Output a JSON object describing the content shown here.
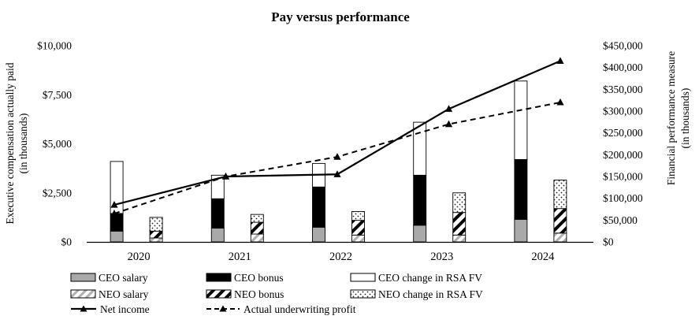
{
  "title": "Pay versus performance",
  "colors": {
    "ink": "#000000",
    "ceo_salary_gray": "#a9a9a9",
    "stripe_light_gray": "#b0b0b0",
    "white": "#ffffff"
  },
  "chart_data": {
    "type": "bar",
    "subtype": "stacked-bars-with-lines",
    "title": "Pay versus performance",
    "grid": false,
    "legend_position": "bottom",
    "categories": [
      "2020",
      "2021",
      "2022",
      "2023",
      "2024"
    ],
    "bar_groups": [
      {
        "name": "CEO",
        "axis": "left",
        "stack": [
          {
            "name": "CEO salary",
            "style": "solid-gray",
            "values": [
              550,
              700,
              750,
              850,
              1150
            ]
          },
          {
            "name": "CEO bonus",
            "style": "solid-black",
            "values": [
              900,
              1500,
              2050,
              2550,
              3050
            ]
          },
          {
            "name": "CEO change in RSA FV",
            "style": "white-outline",
            "values": [
              2650,
              1200,
              1200,
              2700,
              4000
            ]
          }
        ],
        "stack_totals": [
          4100,
          3400,
          4000,
          6100,
          8200
        ]
      },
      {
        "name": "NEO",
        "axis": "left",
        "stack": [
          {
            "name": "NEO salary",
            "style": "light-diagonal-stripes",
            "values": [
              200,
              400,
              350,
              350,
              450
            ]
          },
          {
            "name": "NEO bonus",
            "style": "bold-diagonal-stripes",
            "values": [
              350,
              600,
              750,
              1150,
              1250
            ]
          },
          {
            "name": "NEO change in RSA FV",
            "style": "dots",
            "values": [
              700,
              400,
              450,
              1000,
              1450
            ]
          }
        ],
        "stack_totals": [
          1250,
          1400,
          1550,
          2500,
          3150
        ]
      }
    ],
    "line_series": [
      {
        "name": "Net income",
        "style": "solid",
        "marker": "triangle",
        "axis": "right",
        "values": [
          85000,
          150000,
          155000,
          305000,
          415000
        ]
      },
      {
        "name": "Actual underwriting profit",
        "style": "dashed",
        "marker": "triangle",
        "axis": "right",
        "values": [
          65000,
          150000,
          195000,
          270000,
          320000
        ]
      }
    ],
    "left_axis": {
      "label_line1": "Executive compensation actually paid",
      "label_line2": "(in thousands)",
      "min": 0,
      "max": 10000,
      "tick_step": 2500,
      "ticks": [
        "$0",
        "$2,500",
        "$5,000",
        "$7,500",
        "$10,000"
      ]
    },
    "right_axis": {
      "label_line1": "Financial performance measure",
      "label_line2": "(in thousands)",
      "min": 0,
      "max": 450000,
      "tick_step": 50000,
      "ticks": [
        "$0",
        "$50,000",
        "$100,000",
        "$150,000",
        "$200,000",
        "$250,000",
        "$300,000",
        "$350,000",
        "$400,000",
        "$450,000"
      ]
    }
  }
}
